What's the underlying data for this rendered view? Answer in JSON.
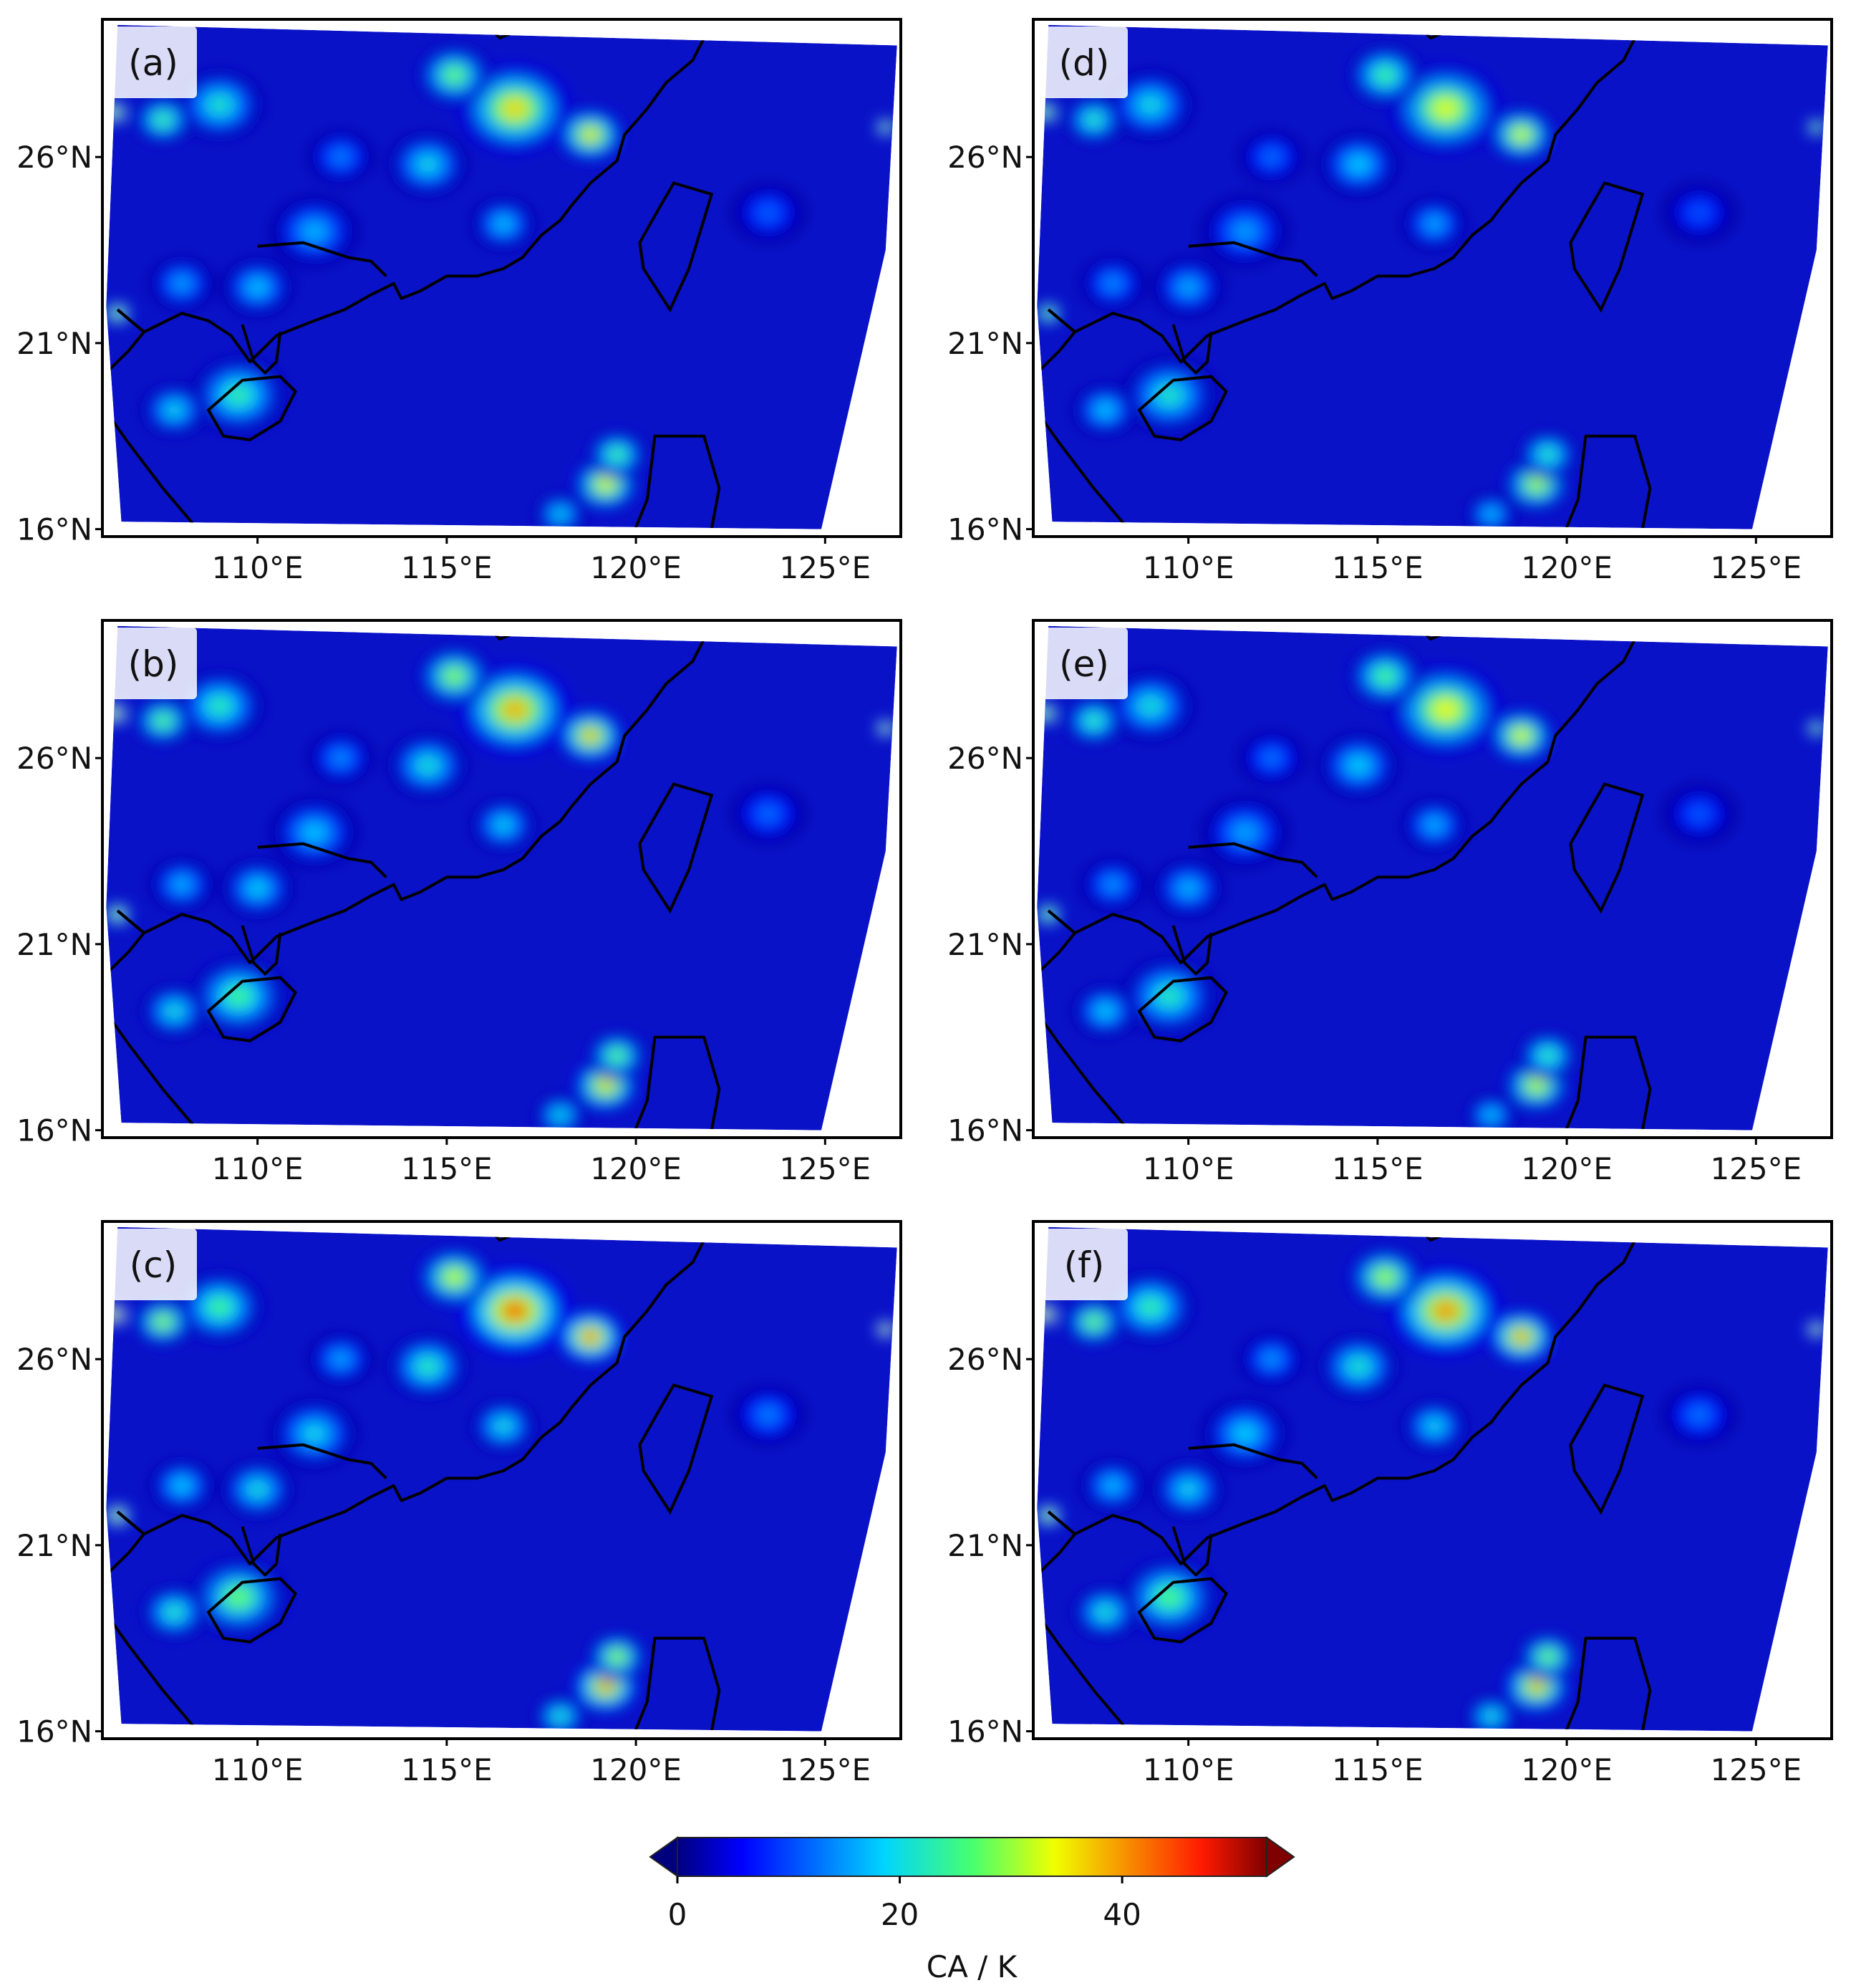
{
  "figure": {
    "lat_tick_labels": [
      "26°N",
      "21°N",
      "16°N"
    ],
    "lon_tick_labels": [
      "110°E",
      "115°E",
      "120°E",
      "125°E"
    ],
    "lat_ticks": [
      26,
      21,
      16
    ],
    "lon_ticks": [
      110,
      115,
      120,
      125
    ],
    "lon_range": [
      105.9,
      127.0
    ],
    "lat_range": [
      15.8,
      29.7
    ],
    "panels": [
      {
        "id": "a",
        "tag": "(a)",
        "intensity": 1.0
      },
      {
        "id": "b",
        "tag": "(b)",
        "intensity": 1.06
      },
      {
        "id": "c",
        "tag": "(c)",
        "intensity": 1.16
      },
      {
        "id": "d",
        "tag": "(d)",
        "intensity": 0.92
      },
      {
        "id": "e",
        "tag": "(e)",
        "intensity": 0.95
      },
      {
        "id": "f",
        "tag": "(f)",
        "intensity": 1.1
      }
    ],
    "colorbar": {
      "label": "CA / K",
      "ticks": [
        0,
        20,
        40
      ],
      "tick_labels": [
        "0",
        "20",
        "40"
      ],
      "range": [
        0,
        53
      ],
      "extend": "both",
      "colormap": "jet"
    }
  }
}
